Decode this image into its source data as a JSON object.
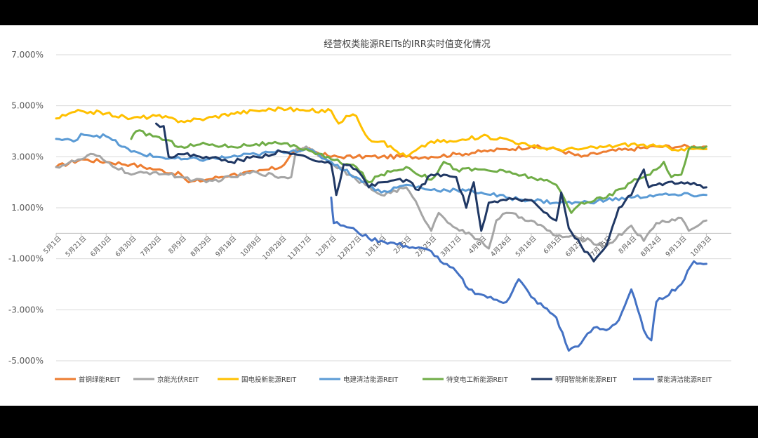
{
  "chart_data": {
    "type": "line",
    "title": "经营权类能源REITs的IRR实时值变化情况",
    "xlabel": "",
    "ylabel": "",
    "ylim": [
      -5,
      7
    ],
    "yticks": [
      "7.000%",
      "5.000%",
      "3.000%",
      "1.000%",
      "-1.000%",
      "-3.000%",
      "-5.000%"
    ],
    "ytick_values": [
      7,
      5,
      3,
      1,
      -1,
      -3,
      -5
    ],
    "grid": "horizontal",
    "legend": "bottom",
    "x_start_label": "5月1日",
    "x_tick_labels": [
      "5月1日",
      "5月21日",
      "6月10日",
      "6月30日",
      "7月20日",
      "8月9日",
      "8月29日",
      "9月18日",
      "10月8日",
      "10月28日",
      "11月17日",
      "12月7日",
      "12月27日",
      "1月16日",
      "2月5日",
      "2月25日",
      "3月17日",
      "4月6日",
      "4月26日",
      "5月16日",
      "6月5日",
      "6月25日",
      "7月15日",
      "8月4日",
      "8月24日",
      "9月13日",
      "10月3日"
    ],
    "x_count": 27,
    "series": [
      {
        "name": "首钢绿能REIT",
        "color": "#ED7D31",
        "start": 0,
        "points": [
          [
            0,
            2.6
          ],
          [
            1,
            2.9
          ],
          [
            2,
            2.8
          ],
          [
            3,
            2.7
          ],
          [
            4,
            2.5
          ],
          [
            5,
            2.3
          ],
          [
            5.3,
            2.0
          ],
          [
            6,
            2.1
          ],
          [
            7,
            2.3
          ],
          [
            8,
            2.4
          ],
          [
            9,
            2.6
          ],
          [
            9.5,
            3.2
          ],
          [
            10,
            3.3
          ],
          [
            11,
            3.0
          ],
          [
            12,
            3.0
          ],
          [
            13,
            3.0
          ],
          [
            14,
            3.0
          ],
          [
            15,
            3.0
          ],
          [
            16,
            3.1
          ],
          [
            17,
            3.2
          ],
          [
            18,
            3.3
          ],
          [
            19,
            3.4
          ],
          [
            20,
            3.3
          ],
          [
            21,
            3.0
          ],
          [
            22,
            3.2
          ],
          [
            23,
            3.3
          ],
          [
            24,
            3.4
          ],
          [
            25,
            3.4
          ],
          [
            26,
            3.4
          ]
        ]
      },
      {
        "name": "京能光伏REIT",
        "color": "#A5A5A5",
        "start": 0,
        "points": [
          [
            0,
            2.6
          ],
          [
            1,
            2.9
          ],
          [
            1.5,
            3.1
          ],
          [
            2,
            2.8
          ],
          [
            3,
            2.3
          ],
          [
            4,
            2.4
          ],
          [
            5,
            2.2
          ],
          [
            6,
            2.0
          ],
          [
            7,
            2.2
          ],
          [
            8,
            2.4
          ],
          [
            9,
            2.2
          ],
          [
            9.4,
            2.2
          ],
          [
            9.6,
            3.3
          ],
          [
            10,
            3.4
          ],
          [
            11,
            2.8
          ],
          [
            12,
            2.1
          ],
          [
            13,
            1.5
          ],
          [
            14,
            1.8
          ],
          [
            14.5,
            1.0
          ],
          [
            15,
            0.1
          ],
          [
            15.3,
            0.8
          ],
          [
            16,
            0.2
          ],
          [
            17,
            -0.3
          ],
          [
            17.3,
            -0.6
          ],
          [
            17.6,
            0.5
          ],
          [
            18,
            0.8
          ],
          [
            19,
            0.5
          ],
          [
            20,
            -0.1
          ],
          [
            21,
            -0.2
          ],
          [
            22,
            -0.5
          ],
          [
            23,
            0.3
          ],
          [
            23.5,
            -0.3
          ],
          [
            24,
            0.4
          ],
          [
            25,
            0.6
          ],
          [
            25.3,
            0.1
          ],
          [
            26,
            0.5
          ]
        ]
      },
      {
        "name": "国电投新能源REIT",
        "color": "#FFC000",
        "start": 0,
        "points": [
          [
            0,
            4.5
          ],
          [
            1,
            4.8
          ],
          [
            2,
            4.7
          ],
          [
            3,
            4.5
          ],
          [
            4,
            4.6
          ],
          [
            5,
            4.4
          ],
          [
            6,
            4.5
          ],
          [
            7,
            4.7
          ],
          [
            8,
            4.8
          ],
          [
            9,
            4.9
          ],
          [
            10,
            4.8
          ],
          [
            11,
            4.8
          ],
          [
            11.3,
            4.3
          ],
          [
            11.6,
            4.6
          ],
          [
            12,
            4.6
          ],
          [
            12.5,
            3.7
          ],
          [
            13,
            3.6
          ],
          [
            14,
            3.0
          ],
          [
            15,
            3.6
          ],
          [
            16,
            3.6
          ],
          [
            17,
            3.8
          ],
          [
            18,
            3.7
          ],
          [
            19,
            3.4
          ],
          [
            20,
            3.3
          ],
          [
            21,
            3.3
          ],
          [
            22,
            3.4
          ],
          [
            23,
            3.5
          ],
          [
            24,
            3.4
          ],
          [
            25,
            3.3
          ],
          [
            26,
            3.3
          ]
        ]
      },
      {
        "name": "电建清洁能源REIT",
        "color": "#5B9BD5",
        "start": 0,
        "points": [
          [
            0,
            3.7
          ],
          [
            0.7,
            3.6
          ],
          [
            1,
            3.9
          ],
          [
            2,
            3.8
          ],
          [
            3,
            3.2
          ],
          [
            4,
            3.0
          ],
          [
            5,
            2.9
          ],
          [
            6,
            2.9
          ],
          [
            7,
            3.0
          ],
          [
            8,
            3.1
          ],
          [
            9,
            3.2
          ],
          [
            10,
            3.3
          ],
          [
            11,
            2.8
          ],
          [
            12,
            2.2
          ],
          [
            13,
            1.6
          ],
          [
            14,
            1.9
          ],
          [
            15,
            1.7
          ],
          [
            16,
            1.7
          ],
          [
            17,
            1.6
          ],
          [
            18,
            1.4
          ],
          [
            19,
            1.3
          ],
          [
            20,
            1.2
          ],
          [
            21,
            1.2
          ],
          [
            22,
            1.3
          ],
          [
            23,
            1.4
          ],
          [
            24,
            1.5
          ],
          [
            25,
            1.5
          ],
          [
            26,
            1.5
          ]
        ]
      },
      {
        "name": "特变电工新能源REIT",
        "color": "#70AD47",
        "start": 3,
        "points": [
          [
            3,
            3.7
          ],
          [
            3.2,
            4.0
          ],
          [
            4,
            3.8
          ],
          [
            5,
            3.4
          ],
          [
            6,
            3.5
          ],
          [
            7,
            3.4
          ],
          [
            8,
            3.5
          ],
          [
            9,
            3.5
          ],
          [
            10,
            3.3
          ],
          [
            11,
            2.9
          ],
          [
            12,
            2.6
          ],
          [
            12.5,
            2.0
          ],
          [
            13,
            2.3
          ],
          [
            14,
            2.6
          ],
          [
            15,
            2.1
          ],
          [
            15.5,
            2.8
          ],
          [
            16,
            2.5
          ],
          [
            17,
            2.5
          ],
          [
            18,
            2.4
          ],
          [
            19,
            2.2
          ],
          [
            20,
            1.9
          ],
          [
            20.3,
            1.4
          ],
          [
            20.6,
            0.8
          ],
          [
            21,
            1.2
          ],
          [
            22,
            1.4
          ],
          [
            23,
            2.0
          ],
          [
            24,
            2.5
          ],
          [
            24.3,
            2.8
          ],
          [
            24.6,
            2.2
          ],
          [
            25,
            2.3
          ],
          [
            25.3,
            3.3
          ],
          [
            26,
            3.4
          ]
        ]
      },
      {
        "name": "明阳智能新能源REIT",
        "color": "#203864",
        "start": 4,
        "points": [
          [
            4,
            4.3
          ],
          [
            4.3,
            4.2
          ],
          [
            4.5,
            3.0
          ],
          [
            5,
            3.1
          ],
          [
            6,
            3.0
          ],
          [
            7,
            2.8
          ],
          [
            8,
            3.0
          ],
          [
            9,
            3.2
          ],
          [
            10,
            3.0
          ],
          [
            11,
            2.7
          ],
          [
            11.2,
            1.5
          ],
          [
            11.5,
            2.7
          ],
          [
            12,
            2.5
          ],
          [
            12.5,
            1.8
          ],
          [
            13,
            2.0
          ],
          [
            14,
            2.1
          ],
          [
            14.5,
            1.7
          ],
          [
            15,
            2.3
          ],
          [
            16,
            2.2
          ],
          [
            16.4,
            1.0
          ],
          [
            16.7,
            2.0
          ],
          [
            17,
            0.1
          ],
          [
            17.3,
            1.2
          ],
          [
            18,
            1.3
          ],
          [
            19,
            1.3
          ],
          [
            20,
            0.5
          ],
          [
            20.2,
            1.6
          ],
          [
            20.5,
            0.2
          ],
          [
            21,
            -0.5
          ],
          [
            21.5,
            -1.1
          ],
          [
            22,
            -0.5
          ],
          [
            22.5,
            1.0
          ],
          [
            23,
            1.5
          ],
          [
            23.5,
            2.5
          ],
          [
            23.7,
            1.8
          ],
          [
            24,
            1.9
          ],
          [
            25,
            2.0
          ],
          [
            26,
            1.8
          ]
        ]
      },
      {
        "name": "蒙能清洁能源REIT",
        "color": "#4472C4",
        "start": 11,
        "points": [
          [
            11,
            1.4
          ],
          [
            11.1,
            0.4
          ],
          [
            11.5,
            0.3
          ],
          [
            12,
            0.1
          ],
          [
            12.5,
            -0.2
          ],
          [
            13,
            -0.3
          ],
          [
            14,
            -0.5
          ],
          [
            15,
            -0.7
          ],
          [
            15.5,
            -1.2
          ],
          [
            16,
            -1.5
          ],
          [
            16.5,
            -2.2
          ],
          [
            17,
            -2.4
          ],
          [
            17.5,
            -2.6
          ],
          [
            18,
            -2.7
          ],
          [
            18.5,
            -1.8
          ],
          [
            19,
            -2.5
          ],
          [
            20,
            -3.3
          ],
          [
            20.5,
            -4.6
          ],
          [
            21,
            -4.3
          ],
          [
            21.5,
            -3.7
          ],
          [
            22,
            -3.8
          ],
          [
            22.5,
            -3.4
          ],
          [
            23,
            -2.2
          ],
          [
            23.5,
            -3.8
          ],
          [
            23.8,
            -4.2
          ],
          [
            24,
            -2.7
          ],
          [
            25,
            -2.0
          ],
          [
            25.5,
            -1.1
          ],
          [
            26,
            -1.2
          ]
        ]
      }
    ]
  }
}
